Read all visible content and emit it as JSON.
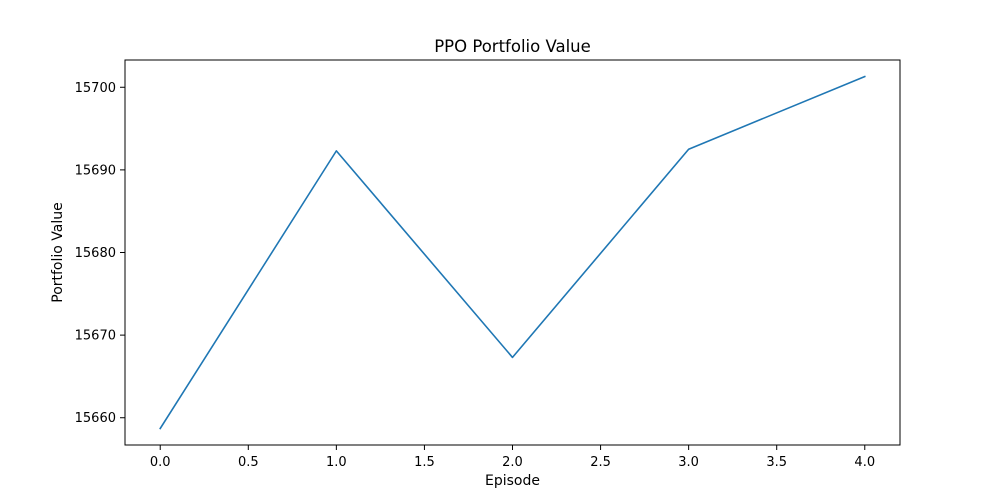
{
  "chart_data": {
    "type": "line",
    "title": "PPO Portfolio Value",
    "xlabel": "Episode",
    "ylabel": "Portfolio Value",
    "x": [
      0,
      1,
      2,
      3,
      4
    ],
    "series": [
      {
        "values": [
          15658.7,
          15692.3,
          15667.3,
          15692.5,
          15701.3
        ],
        "color": "#1f77b4"
      }
    ],
    "xlim": [
      -0.2,
      4.2
    ],
    "ylim": [
      15656.7,
      15703.3
    ],
    "xticks": [
      0.0,
      0.5,
      1.0,
      1.5,
      2.0,
      2.5,
      3.0,
      3.5,
      4.0
    ],
    "xtick_labels": [
      "0.0",
      "0.5",
      "1.0",
      "1.5",
      "2.0",
      "2.5",
      "3.0",
      "3.5",
      "4.0"
    ],
    "yticks": [
      15660,
      15670,
      15680,
      15690,
      15700
    ],
    "ytick_labels": [
      "15660",
      "15670",
      "15680",
      "15690",
      "15700"
    ],
    "grid": false,
    "legend": false
  }
}
